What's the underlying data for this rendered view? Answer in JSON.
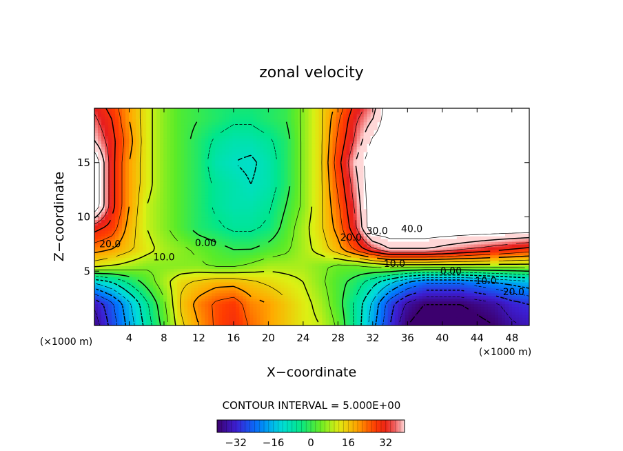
{
  "chart_data": {
    "type": "heatmap",
    "title": "zonal velocity",
    "xlabel": "X−coordinate",
    "ylabel": "Z−coordinate",
    "x_unit_left": "(×1000 m)",
    "x_unit_right": "(×1000 m)",
    "xlim": [
      0,
      50
    ],
    "ylim": [
      0,
      20
    ],
    "x_ticks": [
      4,
      8,
      12,
      16,
      20,
      24,
      28,
      32,
      36,
      40,
      44,
      48
    ],
    "y_ticks": [
      5,
      10,
      15
    ],
    "contour_interval_text": "CONTOUR INTERVAL =  5.000E+00",
    "colorbar": {
      "min": -40,
      "max": 40,
      "ticks": [
        -32,
        -16,
        0,
        16,
        32
      ],
      "tick_labels": [
        "−32",
        "−16",
        "0",
        "16",
        "32"
      ]
    },
    "contour_labels": [
      {
        "text": "20.0",
        "x": 1.8,
        "z": 7.2
      },
      {
        "text": "10.0",
        "x": 8.0,
        "z": 6.0
      },
      {
        "text": "0.00",
        "x": 12.8,
        "z": 7.3
      },
      {
        "text": "20.0",
        "x": 29.5,
        "z": 7.8
      },
      {
        "text": "30.0",
        "x": 32.5,
        "z": 8.4
      },
      {
        "text": "40.0",
        "x": 36.5,
        "z": 8.6
      },
      {
        "text": "10.0",
        "x": 34.5,
        "z": 5.4
      },
      {
        "text": "0.00",
        "x": 41.0,
        "z": 4.7
      },
      {
        "text": "10.0",
        "x": 45.0,
        "z": 3.8
      },
      {
        "text": "20.0",
        "x": 48.2,
        "z": 2.8
      }
    ],
    "value_grid": {
      "x": [
        0,
        2,
        4,
        6,
        8,
        10,
        12,
        14,
        16,
        18,
        20,
        22,
        24,
        26,
        28,
        30,
        32,
        34,
        36,
        38,
        40,
        42,
        44,
        46,
        48,
        50
      ],
      "z": [
        0,
        2,
        4,
        5.5,
        7,
        9,
        11,
        13,
        15,
        17,
        19,
        20
      ],
      "values": [
        [
          -38,
          -28,
          -18,
          -8,
          2,
          14,
          20,
          26,
          30,
          24,
          20,
          16,
          12,
          10,
          4,
          -6,
          -18,
          -30,
          -40,
          -44,
          -44,
          -44,
          -42,
          -40,
          -36,
          -34
        ],
        [
          -34,
          -26,
          -16,
          -6,
          4,
          16,
          22,
          26,
          28,
          22,
          20,
          16,
          12,
          8,
          2,
          -6,
          -16,
          -28,
          -36,
          -40,
          -40,
          -40,
          -38,
          -36,
          -32,
          -30
        ],
        [
          -14,
          -10,
          -4,
          2,
          8,
          14,
          16,
          18,
          18,
          16,
          14,
          12,
          10,
          6,
          2,
          -2,
          -8,
          -14,
          -20,
          -24,
          -24,
          -24,
          -22,
          -20,
          -18,
          -16
        ],
        [
          12,
          10,
          8,
          6,
          6,
          6,
          6,
          4,
          4,
          6,
          8,
          8,
          8,
          6,
          4,
          4,
          6,
          8,
          8,
          8,
          8,
          8,
          8,
          8,
          8,
          8
        ],
        [
          22,
          20,
          16,
          12,
          8,
          6,
          4,
          2,
          0,
          0,
          2,
          4,
          8,
          12,
          18,
          26,
          34,
          40,
          40,
          40,
          38,
          36,
          34,
          32,
          30,
          28
        ],
        [
          32,
          28,
          18,
          10,
          6,
          2,
          -2,
          -4,
          -6,
          -6,
          -4,
          2,
          8,
          14,
          22,
          34,
          50,
          50,
          50,
          50,
          50,
          50,
          50,
          50,
          50,
          50
        ],
        [
          50,
          32,
          20,
          10,
          6,
          2,
          -2,
          -6,
          -8,
          -8,
          -6,
          0,
          6,
          14,
          24,
          36,
          50,
          50,
          50,
          50,
          50,
          50,
          50,
          50,
          50,
          50
        ],
        [
          50,
          32,
          20,
          12,
          6,
          2,
          -2,
          -6,
          -8,
          -10,
          -8,
          -2,
          6,
          14,
          26,
          38,
          50,
          50,
          50,
          50,
          50,
          50,
          50,
          50,
          50,
          50
        ],
        [
          50,
          32,
          20,
          12,
          6,
          2,
          -2,
          -8,
          -10,
          -11,
          -8,
          -2,
          6,
          14,
          28,
          40,
          50,
          50,
          50,
          50,
          50,
          50,
          50,
          50,
          50,
          50
        ],
        [
          40,
          32,
          22,
          12,
          6,
          2,
          -2,
          -6,
          -8,
          -8,
          -6,
          -2,
          6,
          14,
          26,
          36,
          46,
          50,
          50,
          50,
          50,
          50,
          50,
          50,
          50,
          50
        ],
        [
          36,
          30,
          20,
          12,
          6,
          2,
          0,
          -2,
          -4,
          -4,
          -2,
          0,
          6,
          14,
          24,
          34,
          40,
          50,
          50,
          50,
          50,
          50,
          50,
          50,
          50,
          50
        ],
        [
          34,
          28,
          20,
          12,
          6,
          2,
          0,
          -2,
          -3,
          -3,
          -2,
          0,
          6,
          14,
          22,
          32,
          38,
          50,
          50,
          50,
          50,
          50,
          50,
          50,
          50,
          50
        ]
      ]
    }
  }
}
